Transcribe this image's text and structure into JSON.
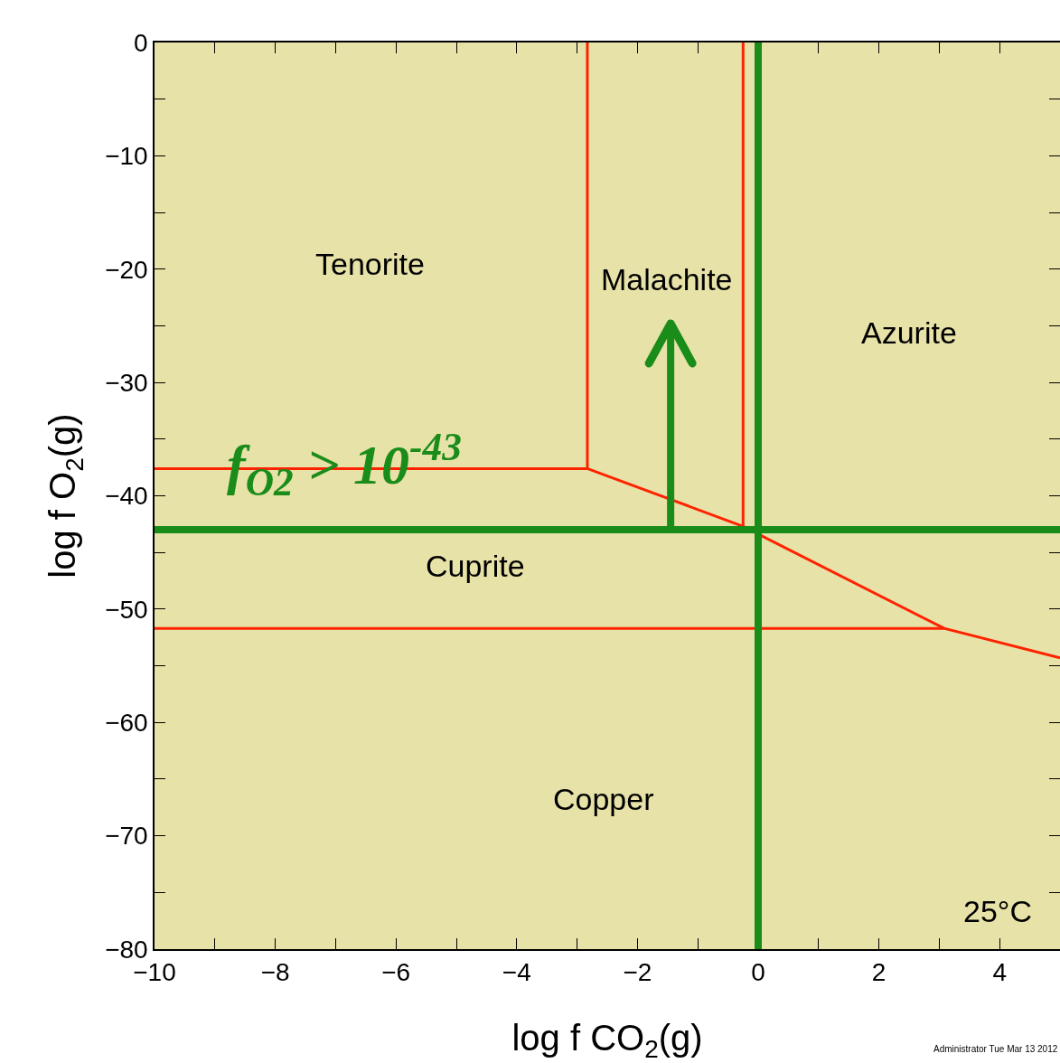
{
  "chart_data": {
    "type": "line",
    "xlabel": "log f CO$_{2}$(g)",
    "ylabel": "log f O$_{2}$(g)",
    "xlim": [
      -10,
      5
    ],
    "ylim": [
      -80,
      0
    ],
    "xticks": [
      {
        "value": -10,
        "label": "−10"
      },
      {
        "value": -9,
        "label": null
      },
      {
        "value": -8,
        "label": "−8"
      },
      {
        "value": -7,
        "label": null
      },
      {
        "value": -6,
        "label": "−6"
      },
      {
        "value": -5,
        "label": null
      },
      {
        "value": -4,
        "label": "−4"
      },
      {
        "value": -3,
        "label": null
      },
      {
        "value": -2,
        "label": "−2"
      },
      {
        "value": -1,
        "label": null
      },
      0,
      {
        "value": 1,
        "label": null
      },
      2,
      {
        "value": 3,
        "label": null
      },
      4
    ],
    "yticks": [
      0,
      {
        "value": -5,
        "label": null
      },
      {
        "value": -10,
        "label": "−10"
      },
      {
        "value": -15,
        "label": null
      },
      {
        "value": -20,
        "label": "−20"
      },
      {
        "value": -25,
        "label": null
      },
      {
        "value": -30,
        "label": "−30"
      },
      {
        "value": -35,
        "label": null
      },
      {
        "value": -40,
        "label": "−40"
      },
      {
        "value": -45,
        "label": null
      },
      {
        "value": -50,
        "label": "−50"
      },
      {
        "value": -55,
        "label": null
      },
      {
        "value": -60,
        "label": "−60"
      },
      {
        "value": -65,
        "label": null
      },
      {
        "value": -70,
        "label": "−70"
      },
      {
        "value": -75,
        "label": null
      },
      {
        "value": -80,
        "label": "−80"
      }
    ],
    "series": [
      {
        "color": "#ff2200",
        "x": [
          -10,
          -2.83,
          -0.25,
          3.08,
          5,
          null,
          -2.83,
          -2.83,
          null,
          -0.25,
          -0.25,
          null,
          -10,
          3.08
        ],
        "values": [
          -37.6,
          -37.6,
          -42.7,
          -51.7,
          -54.3,
          null,
          -37.6,
          0,
          null,
          -42.7,
          0,
          null,
          -51.7,
          -51.7
        ]
      }
    ],
    "ref_lines": [
      {
        "axis": "y",
        "value": -43,
        "color": "#1a8c1a"
      },
      {
        "axis": "x",
        "value": 0,
        "color": "#1a8c1a"
      }
    ],
    "annotations": [
      "Tenorite",
      "Malachite",
      "Azurite",
      "Cuprite",
      "Copper",
      "25°C",
      "f$_{O2}$ > 10$^{-43}$",
      "Administrator Tue Mar 13 2012"
    ],
    "grid": false,
    "marker": "none",
    "line_style": "solid"
  }
}
